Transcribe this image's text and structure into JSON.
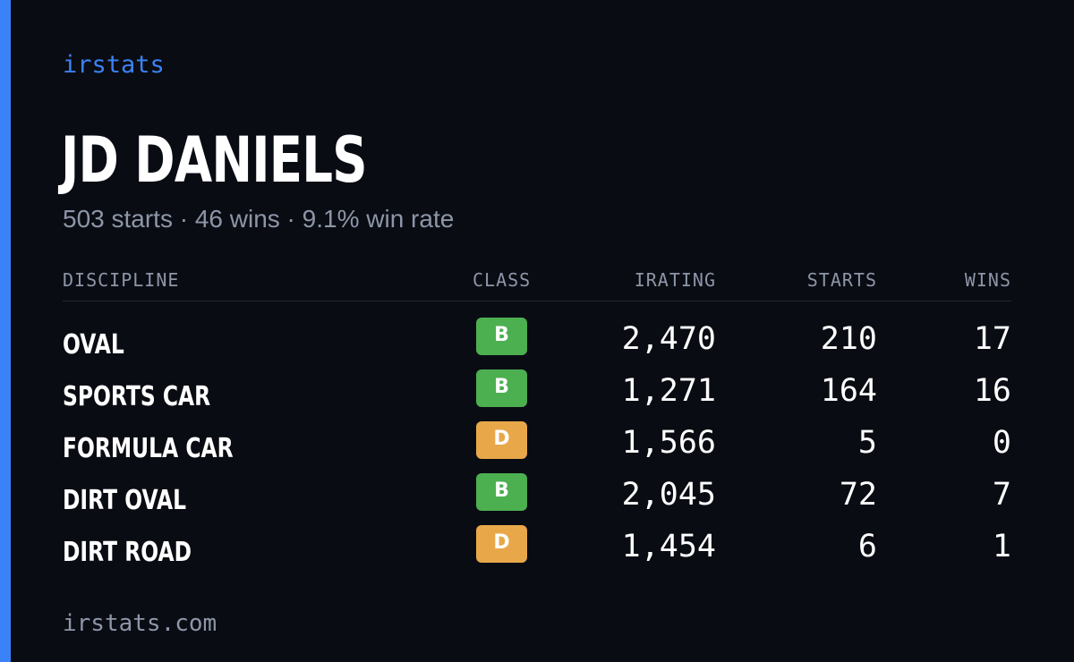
{
  "brand": "irstats",
  "player": {
    "name": "JD DANIELS",
    "summary": "503 starts · 46 wins · 9.1% win rate"
  },
  "table": {
    "headers": {
      "discipline": "DISCIPLINE",
      "class": "CLASS",
      "irating": "IRATING",
      "starts": "STARTS",
      "wins": "WINS"
    },
    "rows": [
      {
        "discipline": "OVAL",
        "class": "B",
        "irating": "2,470",
        "starts": "210",
        "wins": "17"
      },
      {
        "discipline": "SPORTS CAR",
        "class": "B",
        "irating": "1,271",
        "starts": "164",
        "wins": "16"
      },
      {
        "discipline": "FORMULA CAR",
        "class": "D",
        "irating": "1,566",
        "starts": "5",
        "wins": "0"
      },
      {
        "discipline": "DIRT OVAL",
        "class": "B",
        "irating": "2,045",
        "starts": "72",
        "wins": "7"
      },
      {
        "discipline": "DIRT ROAD",
        "class": "D",
        "irating": "1,454",
        "starts": "6",
        "wins": "1"
      }
    ]
  },
  "footer": {
    "domain": "irstats.com"
  },
  "colors": {
    "background": "#0a0c13",
    "accent": "#3b82f6",
    "muted_text": "#8d96a8",
    "class_b": "#4caf50",
    "class_d": "#e8a84a"
  }
}
